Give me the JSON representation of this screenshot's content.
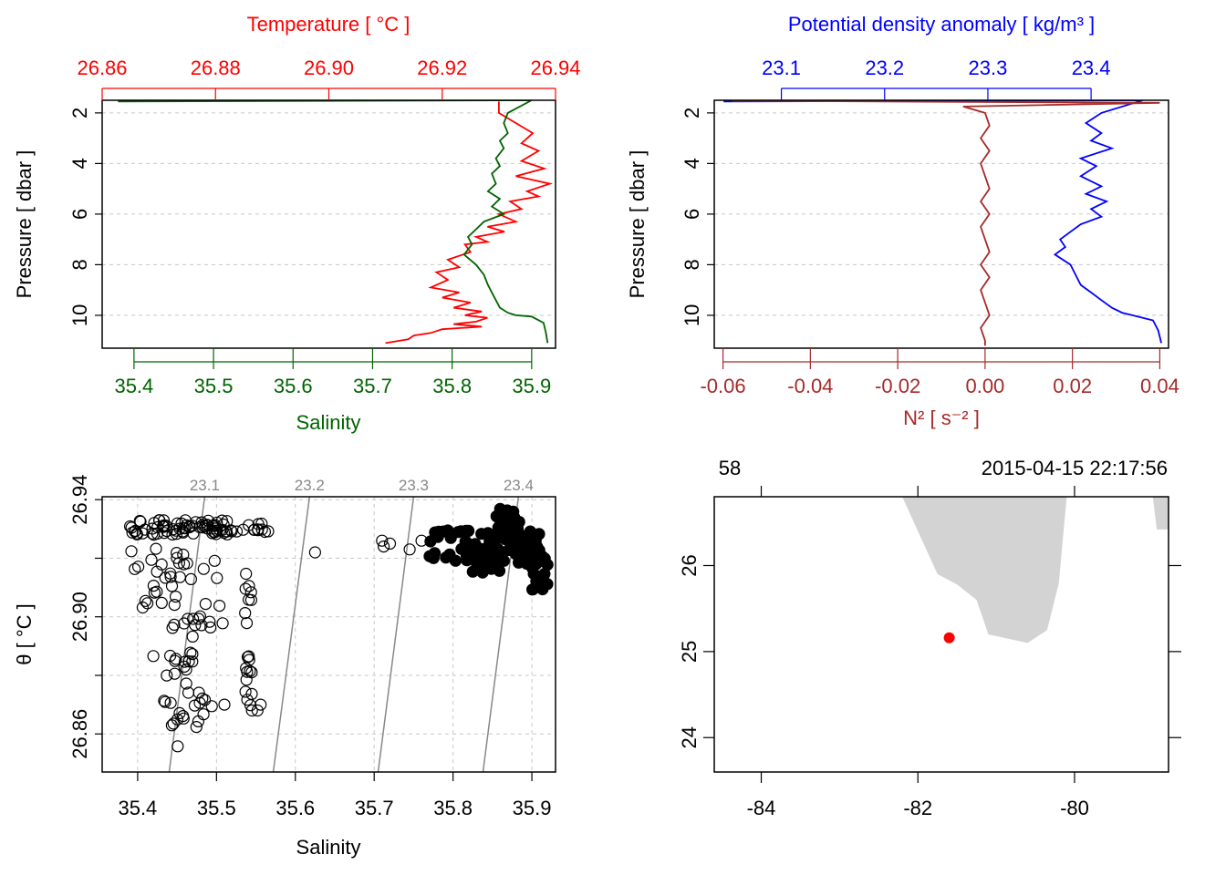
{
  "colors": {
    "salinity": "#006400",
    "temperature": "#ff0000",
    "density": "#0000ff",
    "n2": "#a52a2a",
    "isopycnal": "#888888",
    "land": "#d3d3d3",
    "station": "#ff0000",
    "grid": "#c8c8c8"
  },
  "chart_data": [
    {
      "id": "profile-ts",
      "type": "line",
      "ylabel": "Pressure [ dbar ]",
      "ylim": [
        11.3,
        1.5
      ],
      "yticks": [
        2,
        4,
        6,
        8,
        10
      ],
      "bottom_axis": {
        "label": "Salinity",
        "lim": [
          35.36,
          35.93
        ],
        "ticks": [
          35.4,
          35.5,
          35.6,
          35.7,
          35.8,
          35.9
        ],
        "tick_labels": [
          "35.4",
          "35.5",
          "35.6",
          "35.7",
          "35.8",
          "35.9"
        ]
      },
      "top_axis": {
        "label": "Temperature [ °C ]",
        "lim": [
          26.86,
          26.94
        ],
        "ticks": [
          26.86,
          26.88,
          26.9,
          26.92,
          26.94
        ],
        "tick_labels": [
          "26.86",
          "26.88",
          "26.90",
          "26.92",
          "26.94"
        ]
      },
      "grid": true,
      "series": [
        {
          "name": "Temperature",
          "axis": "top",
          "color_key": "temperature",
          "x": [
            26.93,
            26.93,
            26.933,
            26.936,
            26.934,
            26.937,
            26.934,
            26.938,
            26.933,
            26.939,
            26.935,
            26.937,
            26.932,
            26.934,
            26.93,
            26.933,
            26.928,
            26.931,
            26.926,
            26.928,
            26.924,
            26.925,
            26.921,
            26.923,
            26.919,
            26.921,
            26.918,
            26.923,
            26.92,
            26.925,
            26.922,
            26.927,
            26.924,
            26.928,
            26.926,
            26.922,
            26.927,
            26.92,
            26.918,
            26.915,
            26.914,
            26.91
          ],
          "y": [
            1.55,
            2.0,
            2.4,
            2.8,
            3.2,
            3.5,
            3.9,
            4.2,
            4.5,
            4.8,
            5.1,
            5.3,
            5.5,
            5.8,
            6.0,
            6.3,
            6.5,
            6.7,
            6.9,
            7.1,
            7.2,
            7.5,
            7.8,
            8.1,
            8.3,
            8.6,
            8.9,
            9.1,
            9.3,
            9.5,
            9.7,
            9.85,
            10.0,
            10.1,
            10.25,
            10.35,
            10.45,
            10.55,
            10.7,
            10.8,
            10.95,
            11.1
          ]
        },
        {
          "name": "Salinity",
          "axis": "bottom",
          "color_key": "salinity",
          "x": [
            35.38,
            35.9,
            35.87,
            35.865,
            35.87,
            35.86,
            35.865,
            35.855,
            35.86,
            35.85,
            35.855,
            35.845,
            35.86,
            35.85,
            35.865,
            35.84,
            35.83,
            35.82,
            35.825,
            35.815,
            35.83,
            35.84,
            35.845,
            35.85,
            35.855,
            35.86,
            35.87,
            35.88,
            35.9,
            35.915,
            35.918,
            35.92
          ],
          "y": [
            1.55,
            1.5,
            2.0,
            2.4,
            2.8,
            3.1,
            3.4,
            3.8,
            4.1,
            4.4,
            4.8,
            5.1,
            5.4,
            5.7,
            6.0,
            6.3,
            6.6,
            6.9,
            7.2,
            7.6,
            8.0,
            8.4,
            8.8,
            9.1,
            9.4,
            9.7,
            9.9,
            10.0,
            10.05,
            10.3,
            10.7,
            11.1
          ]
        }
      ]
    },
    {
      "id": "profile-density",
      "type": "line",
      "ylabel": "Pressure [ dbar ]",
      "ylim": [
        11.3,
        1.5
      ],
      "yticks": [
        2,
        4,
        6,
        8,
        10
      ],
      "bottom_axis": {
        "label": "N² [ s⁻² ]",
        "lim": [
          -0.062,
          0.042
        ],
        "ticks": [
          -0.06,
          -0.04,
          -0.02,
          0.0,
          0.02,
          0.04
        ],
        "tick_labels": [
          "-0.06",
          "-0.04",
          "-0.02",
          "0.00",
          "0.02",
          "0.04"
        ]
      },
      "top_axis": {
        "label": "Potential density anomaly [ kg/m³ ]",
        "lim": [
          23.035,
          23.475
        ],
        "ticks": [
          23.1,
          23.2,
          23.3,
          23.4
        ],
        "tick_labels": [
          "23.1",
          "23.2",
          "23.3",
          "23.4"
        ]
      },
      "grid": true,
      "series": [
        {
          "name": "Potential density anomaly",
          "axis": "top",
          "color_key": "density",
          "x": [
            23.044,
            23.45,
            23.41,
            23.395,
            23.41,
            23.4,
            23.42,
            23.39,
            23.405,
            23.39,
            23.41,
            23.395,
            23.415,
            23.4,
            23.41,
            23.39,
            23.38,
            23.37,
            23.375,
            23.365,
            23.38,
            23.385,
            23.39,
            23.4,
            23.41,
            23.42,
            23.43,
            23.44,
            23.46,
            23.465,
            23.468
          ],
          "y": [
            1.55,
            1.5,
            2.0,
            2.4,
            2.8,
            3.1,
            3.4,
            3.8,
            4.1,
            4.5,
            4.9,
            5.2,
            5.5,
            5.8,
            6.1,
            6.4,
            6.7,
            7.0,
            7.3,
            7.6,
            8.0,
            8.4,
            8.8,
            9.1,
            9.4,
            9.7,
            9.9,
            10.0,
            10.2,
            10.6,
            11.1
          ]
        },
        {
          "name": "N²",
          "axis": "bottom",
          "color_key": "n2",
          "x": [
            -0.058,
            0.04,
            -0.005,
            0.0,
            0.001,
            -0.001,
            0.001,
            -0.001,
            0.0,
            0.001,
            -0.001,
            0.001,
            -0.001,
            0.0,
            0.001,
            -0.001,
            0.001,
            -0.001,
            0.0,
            0.001,
            -0.001,
            0.0,
            0.0
          ],
          "y": [
            1.52,
            1.6,
            1.75,
            2.0,
            2.5,
            3.0,
            3.5,
            4.0,
            4.5,
            5.0,
            5.5,
            6.0,
            6.5,
            7.0,
            7.5,
            8.0,
            8.5,
            9.0,
            9.5,
            10.0,
            10.5,
            11.0,
            11.2
          ]
        }
      ]
    },
    {
      "id": "ts-diagram",
      "type": "scatter",
      "xlabel": "Salinity",
      "ylabel": "θ [ °C ]",
      "xlim": [
        35.355,
        35.93
      ],
      "ylim": [
        26.847,
        26.941
      ],
      "xticks": [
        35.4,
        35.5,
        35.6,
        35.7,
        35.8,
        35.9
      ],
      "xtick_labels": [
        "35.4",
        "35.5",
        "35.6",
        "35.7",
        "35.8",
        "35.9"
      ],
      "yticks": [
        26.86,
        26.88,
        26.9,
        26.92,
        26.94
      ],
      "ytick_labels": [
        "26.86",
        "",
        "26.90",
        "",
        "26.94"
      ],
      "grid": true,
      "isopycnals": [
        {
          "label": "23.1",
          "s_bottom": 35.44,
          "s_top": 35.485
        },
        {
          "label": "23.2",
          "s_bottom": 35.572,
          "s_top": 35.618
        },
        {
          "label": "23.3",
          "s_bottom": 35.705,
          "s_top": 35.75
        },
        {
          "label": "23.4",
          "s_bottom": 35.838,
          "s_top": 35.883
        }
      ]
    },
    {
      "id": "station-map",
      "type": "map",
      "xlim": [
        -84.6,
        -78.8
      ],
      "ylim": [
        23.6,
        26.8
      ],
      "xticks": [
        -84,
        -82,
        -80
      ],
      "xtick_labels": [
        "-84",
        "-82",
        "-80"
      ],
      "yticks": [
        24,
        25,
        26
      ],
      "ytick_labels": [
        "24",
        "25",
        "26"
      ],
      "top_labels": {
        "station": "58",
        "time": "2015-04-15 22:17:56"
      },
      "station": {
        "lon": -81.6,
        "lat": 25.16
      },
      "land": [
        [
          [
            -82.2,
            26.8
          ],
          [
            -81.75,
            25.9
          ],
          [
            -81.5,
            25.78
          ],
          [
            -81.25,
            25.6
          ],
          [
            -81.1,
            25.2
          ],
          [
            -80.6,
            25.1
          ],
          [
            -80.35,
            25.25
          ],
          [
            -80.2,
            25.8
          ],
          [
            -80.1,
            26.8
          ]
        ],
        [
          [
            -79.0,
            26.8
          ],
          [
            -78.95,
            26.42
          ],
          [
            -78.8,
            26.42
          ],
          [
            -78.8,
            26.8
          ]
        ]
      ]
    }
  ]
}
